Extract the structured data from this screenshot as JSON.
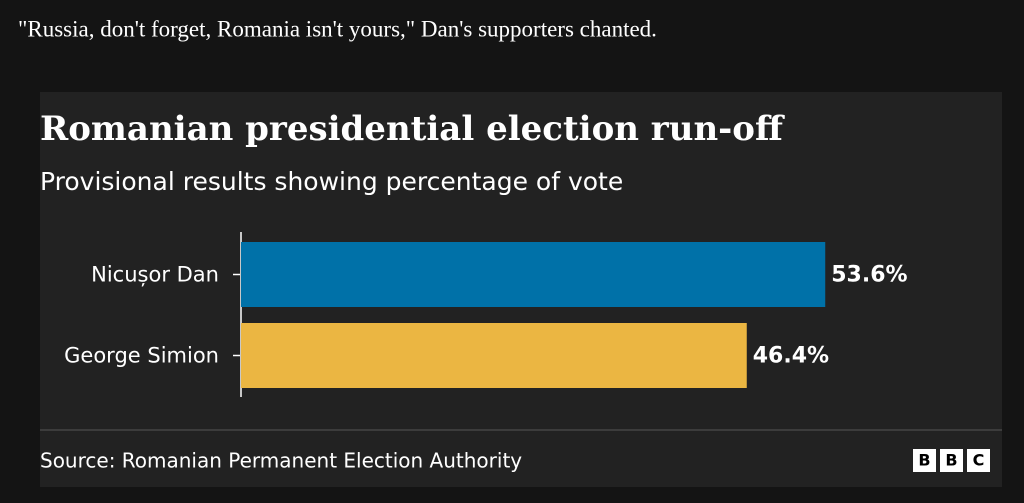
{
  "caption": "\"Russia, don't forget, Romania isn't yours,\" Dan's supporters chanted.",
  "chart_data": {
    "type": "bar",
    "orientation": "horizontal",
    "title": "Romanian presidential election run-off",
    "subtitle": "Provisional results showing percentage of vote",
    "categories": [
      "Nicușor Dan",
      "George Simion"
    ],
    "values": [
      53.6,
      46.4
    ],
    "value_labels": [
      "53.6%",
      "46.4%"
    ],
    "colors": [
      "#0071a8",
      "#ebb642"
    ],
    "source": "Source: Romanian Permanent Election Authority",
    "logo": [
      "B",
      "B",
      "C"
    ]
  }
}
